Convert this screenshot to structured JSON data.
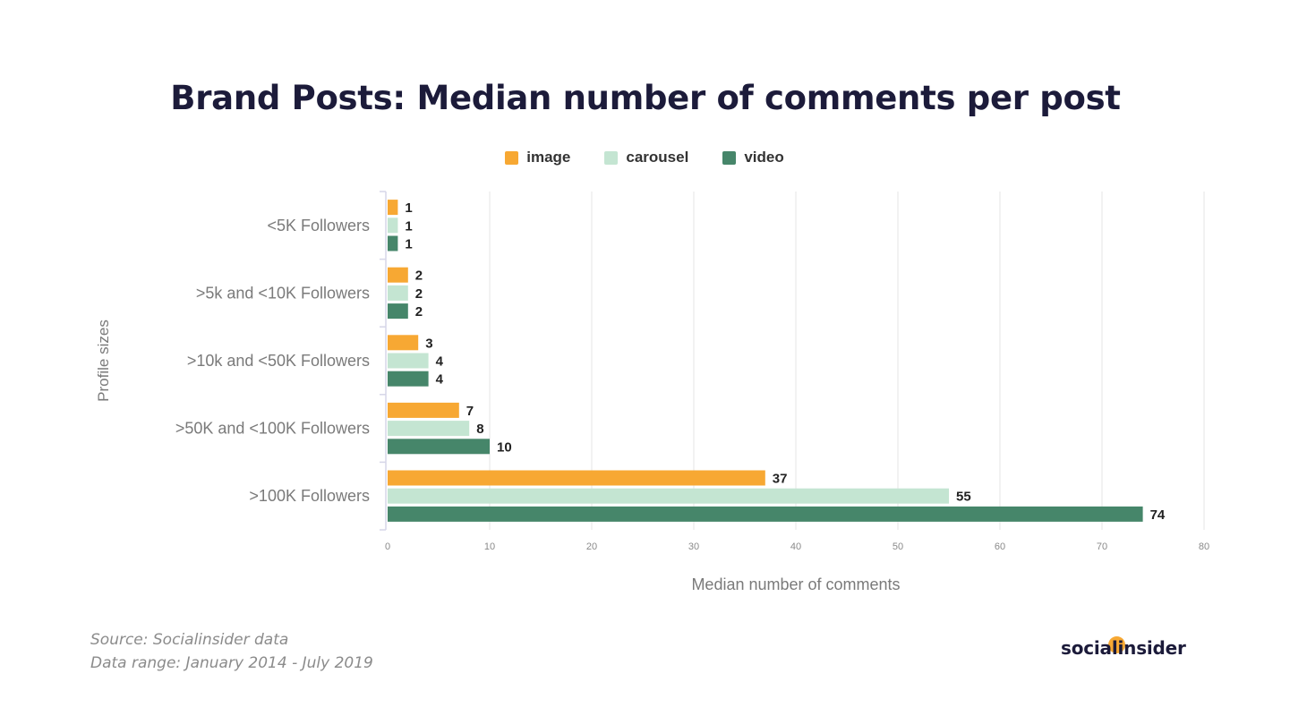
{
  "chart_data": {
    "type": "bar",
    "orientation": "horizontal",
    "title": "Brand Posts: Median number of comments per post",
    "xlabel": "Median number of comments",
    "ylabel": "Profile sizes",
    "xlim": [
      0,
      80
    ],
    "xticks": [
      0,
      10,
      20,
      30,
      40,
      50,
      60,
      70,
      80
    ],
    "grid": "vertical",
    "legend_position": "top-center",
    "categories": [
      "<5K Followers",
      ">5k and <10K Followers",
      ">10k and <50K Followers",
      ">50K and <100K Followers",
      ">100K Followers"
    ],
    "series": [
      {
        "name": "image",
        "color": "#f7a833",
        "values": [
          1,
          2,
          3,
          7,
          37
        ]
      },
      {
        "name": "carousel",
        "color": "#c4e5d2",
        "values": [
          1,
          2,
          4,
          8,
          55
        ]
      },
      {
        "name": "video",
        "color": "#46866a",
        "values": [
          1,
          2,
          4,
          10,
          74
        ]
      }
    ]
  },
  "footer": {
    "source": "Source: Socialinsider data",
    "range": "Data range: January 2014 - July 2019"
  },
  "brand": {
    "logo_text": "socialinsider",
    "accent": "#f7a833"
  }
}
